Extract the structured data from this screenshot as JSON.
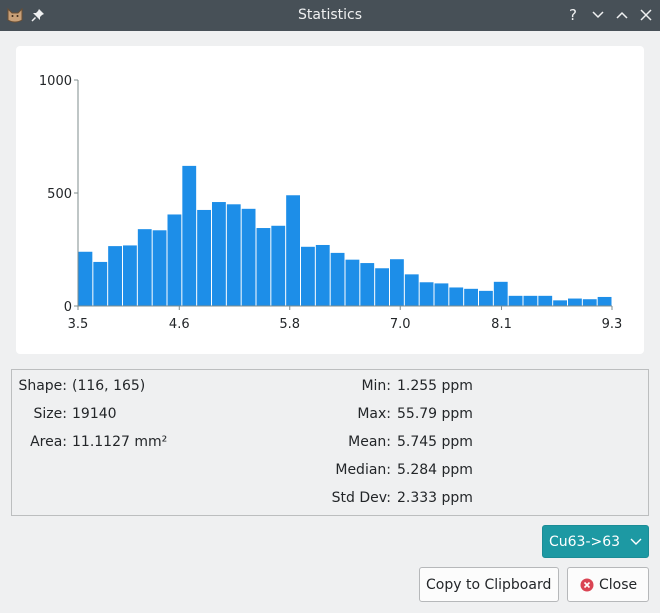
{
  "window": {
    "title": "Statistics"
  },
  "titlebar": {
    "help_glyph": "?"
  },
  "chart_data": {
    "type": "bar",
    "title": "",
    "xlabel": "",
    "ylabel": "",
    "xlim": [
      3.5,
      9.3
    ],
    "ylim": [
      0,
      1000
    ],
    "xticks": [
      "3.5",
      "4.6",
      "5.8",
      "7.0",
      "8.1",
      "9.3"
    ],
    "yticks": [
      "0",
      "500",
      "1000"
    ],
    "bar_color": "#1d8ee8",
    "grid": false,
    "values": [
      240,
      195,
      265,
      268,
      340,
      335,
      405,
      620,
      425,
      460,
      450,
      430,
      345,
      355,
      490,
      262,
      270,
      235,
      205,
      190,
      167,
      207,
      140,
      105,
      100,
      82,
      76,
      67,
      107,
      45,
      45,
      45,
      25,
      33,
      30,
      40
    ]
  },
  "stats": {
    "left": [
      {
        "label": "Shape:",
        "value": "(116, 165)"
      },
      {
        "label": "Size:",
        "value": "19140"
      },
      {
        "label": "Area:",
        "value": "11.1127 mm²"
      }
    ],
    "right": [
      {
        "label": "Min:",
        "value": "1.255 ppm"
      },
      {
        "label": "Max:",
        "value": "55.79 ppm"
      },
      {
        "label": "Mean:",
        "value": "5.745 ppm"
      },
      {
        "label": "Median:",
        "value": "5.284 ppm"
      },
      {
        "label": "Std Dev:",
        "value": "2.333 ppm"
      }
    ]
  },
  "isotope_select": {
    "value": "Cu63->63",
    "accent": "#1d99a3"
  },
  "buttons": {
    "copy": "Copy to Clipboard",
    "close": "Close"
  }
}
